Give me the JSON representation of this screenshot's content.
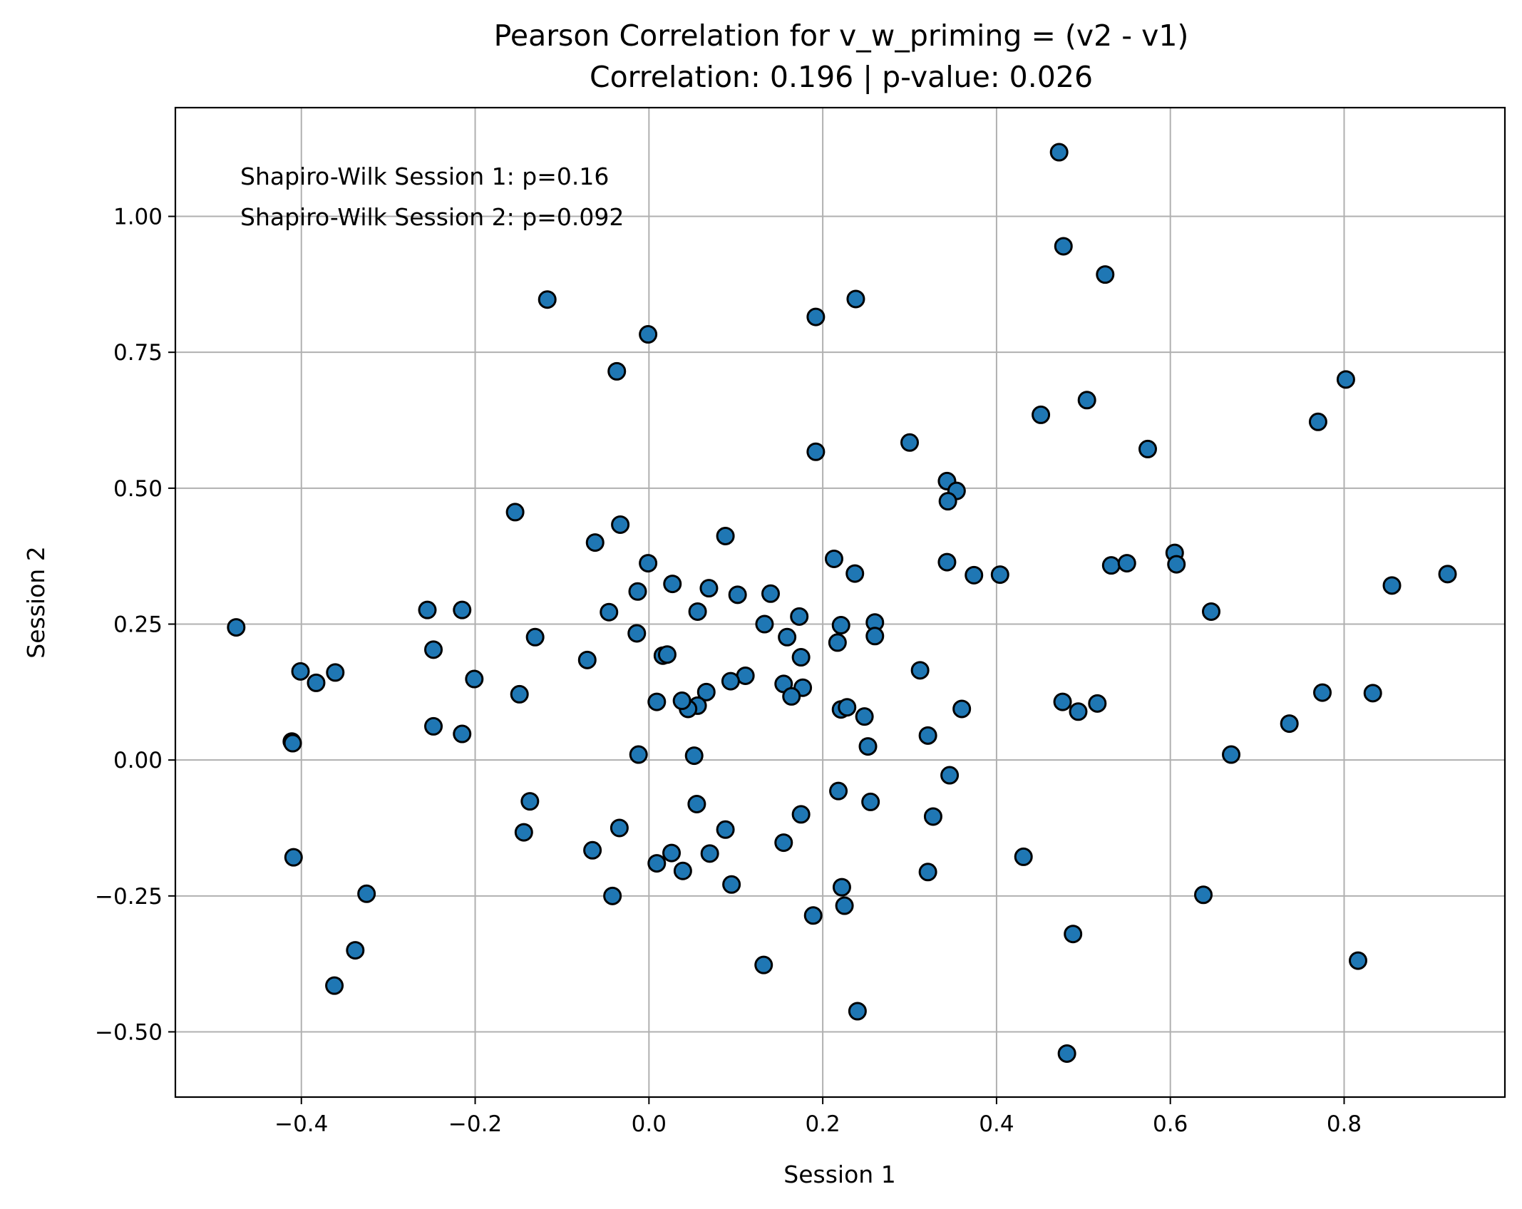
{
  "chart_data": {
    "type": "scatter",
    "title": "Pearson Correlation for v_w_priming = (v2 - v1)",
    "subtitle": "Correlation: 0.196 | p-value: 0.026",
    "xlabel": "Session 1",
    "ylabel": "Session 2",
    "xlim": [
      -0.545,
      0.985
    ],
    "ylim": [
      -0.62,
      1.2
    ],
    "xticks": [
      -0.4,
      -0.2,
      0.0,
      0.2,
      0.4,
      0.6,
      0.8
    ],
    "xtick_labels": [
      "−0.4",
      "−0.2",
      "0.0",
      "0.2",
      "0.4",
      "0.6",
      "0.8"
    ],
    "yticks": [
      -0.5,
      -0.25,
      0.0,
      0.25,
      0.5,
      0.75,
      1.0
    ],
    "ytick_labels": [
      "−0.50",
      "−0.25",
      "0.00",
      "0.25",
      "0.50",
      "0.75",
      "1.00"
    ],
    "grid": true,
    "marker_color": "#1f77b4",
    "marker_edge_color": "#000000",
    "annotations": [
      "Shapiro-Wilk Session 1: p=0.16",
      "Shapiro-Wilk Session 2: p=0.092"
    ],
    "points": [
      [
        0.472,
        1.118
      ],
      [
        0.477,
        0.945
      ],
      [
        0.525,
        0.893
      ],
      [
        0.238,
        0.848
      ],
      [
        0.192,
        0.815
      ],
      [
        -0.117,
        0.847
      ],
      [
        -0.001,
        0.783
      ],
      [
        -0.037,
        0.715
      ],
      [
        0.802,
        0.7
      ],
      [
        0.77,
        0.622
      ],
      [
        0.504,
        0.662
      ],
      [
        0.451,
        0.635
      ],
      [
        0.574,
        0.572
      ],
      [
        0.3,
        0.584
      ],
      [
        0.192,
        0.567
      ],
      [
        0.343,
        0.513
      ],
      [
        0.354,
        0.495
      ],
      [
        0.344,
        0.476
      ],
      [
        -0.154,
        0.456
      ],
      [
        -0.033,
        0.433
      ],
      [
        -0.062,
        0.4
      ],
      [
        0.088,
        0.412
      ],
      [
        0.213,
        0.37
      ],
      [
        0.237,
        0.343
      ],
      [
        0.343,
        0.364
      ],
      [
        0.374,
        0.34
      ],
      [
        0.404,
        0.341
      ],
      [
        0.532,
        0.358
      ],
      [
        0.55,
        0.362
      ],
      [
        0.605,
        0.381
      ],
      [
        0.607,
        0.36
      ],
      [
        0.919,
        0.342
      ],
      [
        0.855,
        0.321
      ],
      [
        0.647,
        0.273
      ],
      [
        -0.001,
        0.362
      ],
      [
        0.027,
        0.324
      ],
      [
        0.069,
        0.316
      ],
      [
        0.102,
        0.304
      ],
      [
        0.14,
        0.306
      ],
      [
        -0.013,
        0.31
      ],
      [
        -0.046,
        0.272
      ],
      [
        0.056,
        0.273
      ],
      [
        0.173,
        0.264
      ],
      [
        0.133,
        0.25
      ],
      [
        0.221,
        0.248
      ],
      [
        0.26,
        0.253
      ],
      [
        0.26,
        0.228
      ],
      [
        0.159,
        0.226
      ],
      [
        0.217,
        0.216
      ],
      [
        0.175,
        0.189
      ],
      [
        -0.014,
        0.233
      ],
      [
        0.016,
        0.192
      ],
      [
        0.021,
        0.194
      ],
      [
        -0.071,
        0.184
      ],
      [
        -0.131,
        0.226
      ],
      [
        -0.475,
        0.244
      ],
      [
        -0.255,
        0.276
      ],
      [
        -0.215,
        0.276
      ],
      [
        -0.248,
        0.203
      ],
      [
        -0.201,
        0.149
      ],
      [
        -0.401,
        0.163
      ],
      [
        -0.361,
        0.161
      ],
      [
        -0.383,
        0.142
      ],
      [
        -0.149,
        0.121
      ],
      [
        0.312,
        0.165
      ],
      [
        0.111,
        0.155
      ],
      [
        0.094,
        0.145
      ],
      [
        0.155,
        0.14
      ],
      [
        0.177,
        0.133
      ],
      [
        0.164,
        0.117
      ],
      [
        0.066,
        0.125
      ],
      [
        0.056,
        0.1
      ],
      [
        0.045,
        0.094
      ],
      [
        0.038,
        0.109
      ],
      [
        0.009,
        0.107
      ],
      [
        0.221,
        0.093
      ],
      [
        0.228,
        0.097
      ],
      [
        0.248,
        0.08
      ],
      [
        0.36,
        0.094
      ],
      [
        0.476,
        0.107
      ],
      [
        0.516,
        0.104
      ],
      [
        0.494,
        0.089
      ],
      [
        0.775,
        0.124
      ],
      [
        0.833,
        0.123
      ],
      [
        0.737,
        0.067
      ],
      [
        0.67,
        0.01
      ],
      [
        -0.248,
        0.062
      ],
      [
        -0.215,
        0.048
      ],
      [
        -0.411,
        0.034
      ],
      [
        -0.41,
        0.031
      ],
      [
        0.252,
        0.025
      ],
      [
        0.321,
        0.045
      ],
      [
        -0.012,
        0.01
      ],
      [
        0.052,
        0.008
      ],
      [
        0.346,
        -0.028
      ],
      [
        -0.137,
        -0.076
      ],
      [
        0.055,
        -0.081
      ],
      [
        0.218,
        -0.057
      ],
      [
        0.255,
        -0.077
      ],
      [
        0.175,
        -0.1
      ],
      [
        0.327,
        -0.104
      ],
      [
        -0.144,
        -0.133
      ],
      [
        -0.034,
        -0.125
      ],
      [
        0.088,
        -0.128
      ],
      [
        0.155,
        -0.152
      ],
      [
        -0.065,
        -0.166
      ],
      [
        0.026,
        -0.171
      ],
      [
        0.07,
        -0.172
      ],
      [
        0.009,
        -0.19
      ],
      [
        0.039,
        -0.204
      ],
      [
        -0.409,
        -0.179
      ],
      [
        0.431,
        -0.178
      ],
      [
        0.321,
        -0.206
      ],
      [
        0.095,
        -0.229
      ],
      [
        0.222,
        -0.234
      ],
      [
        -0.325,
        -0.246
      ],
      [
        -0.042,
        -0.25
      ],
      [
        0.638,
        -0.248
      ],
      [
        0.225,
        -0.268
      ],
      [
        0.189,
        -0.286
      ],
      [
        0.488,
        -0.32
      ],
      [
        -0.338,
        -0.35
      ],
      [
        0.816,
        -0.369
      ],
      [
        0.132,
        -0.377
      ],
      [
        -0.362,
        -0.415
      ],
      [
        0.24,
        -0.462
      ],
      [
        0.481,
        -0.54
      ]
    ]
  }
}
